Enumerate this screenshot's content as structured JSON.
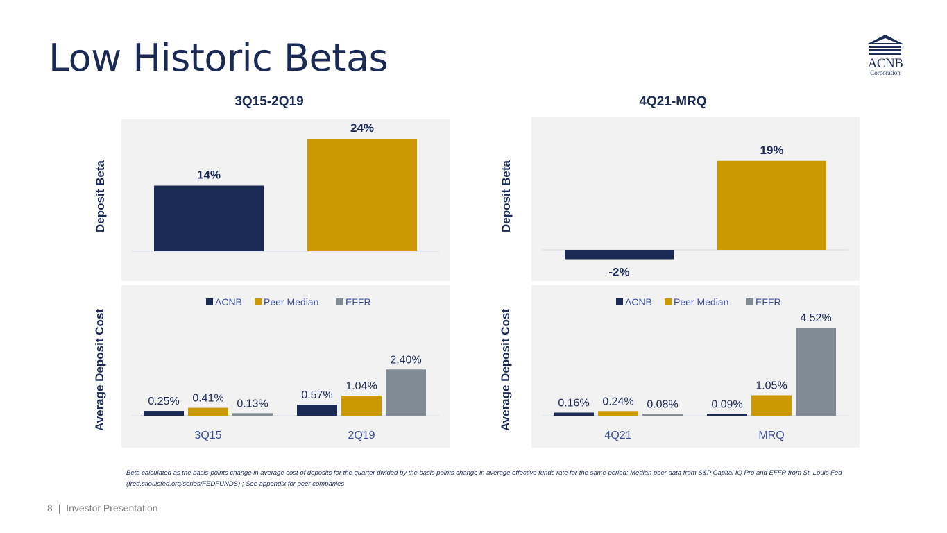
{
  "page": {
    "title": "Low Historic Betas",
    "footnote": "Beta calculated as the basis-points change in average cost of deposits for the quarter divided by the basis points change in average effective funds rate for the same period; Median peer data from S&P Capital IQ Pro and EFFR from St. Louis Fed (fred.stlouisfed.org/series/FEDFUNDS) ; See appendix for peer companies",
    "page_number": "8",
    "footer_separator": "|",
    "footer_text": "Investor Presentation"
  },
  "logo": {
    "name": "ACNB",
    "sub": "Corporation"
  },
  "colors": {
    "navy": "#1b2a55",
    "gold": "#cc9900",
    "gray": "#808b94",
    "panel": "#f2f2f2",
    "label": "#3b4f9a"
  },
  "left": {
    "heading": "3Q15-2Q19",
    "beta_axis_label": "Deposit Beta",
    "cost_axis_label": "Average Deposit Cost"
  },
  "right": {
    "heading": "4Q21-MRQ",
    "beta_axis_label": "Deposit Beta",
    "cost_axis_label": "Average Deposit Cost"
  },
  "chart_data": [
    {
      "id": "beta-left",
      "type": "bar",
      "title": "3Q15-2Q19",
      "ylabel": "Deposit Beta",
      "categories": [
        "ACNB",
        "Peer Median"
      ],
      "values": [
        14,
        24
      ],
      "labels": [
        "14%",
        "24%"
      ],
      "colors": [
        "#1b2a55",
        "#cc9900"
      ],
      "ylim": [
        0,
        25
      ]
    },
    {
      "id": "beta-right",
      "type": "bar",
      "title": "4Q21-MRQ",
      "ylabel": "Deposit Beta",
      "categories": [
        "ACNB",
        "Peer Median"
      ],
      "values": [
        -2,
        19
      ],
      "labels": [
        "-2%",
        "19%"
      ],
      "colors": [
        "#1b2a55",
        "#cc9900"
      ],
      "ylim": [
        -2,
        23
      ]
    },
    {
      "id": "cost-left",
      "type": "bar",
      "ylabel": "Average Deposit Cost",
      "categories": [
        "3Q15",
        "2Q19"
      ],
      "legend": [
        "ACNB",
        "Peer Median",
        "EFFR"
      ],
      "series": [
        {
          "name": "ACNB",
          "color": "#1b2a55",
          "values": [
            0.25,
            0.57
          ],
          "labels": [
            "0.25%",
            "0.57%"
          ]
        },
        {
          "name": "Peer Median",
          "color": "#cc9900",
          "values": [
            0.41,
            1.04
          ],
          "labels": [
            "0.41%",
            "1.04%"
          ]
        },
        {
          "name": "EFFR",
          "color": "#808b94",
          "values": [
            0.13,
            2.4
          ],
          "labels": [
            "0.13%",
            "2.40%"
          ]
        }
      ],
      "ylim": [
        0,
        3.8
      ]
    },
    {
      "id": "cost-right",
      "type": "bar",
      "ylabel": "Average Deposit Cost",
      "categories": [
        "4Q21",
        "MRQ"
      ],
      "legend": [
        "ACNB",
        "Peer Median",
        "EFFR"
      ],
      "series": [
        {
          "name": "ACNB",
          "color": "#1b2a55",
          "values": [
            0.16,
            0.09
          ],
          "labels": [
            "0.16%",
            "0.09%"
          ]
        },
        {
          "name": "Peer Median",
          "color": "#cc9900",
          "values": [
            0.24,
            1.05
          ],
          "labels": [
            "0.24%",
            "1.05%"
          ]
        },
        {
          "name": "EFFR",
          "color": "#808b94",
          "values": [
            0.08,
            4.52
          ],
          "labels": [
            "0.08%",
            "4.52%"
          ]
        }
      ],
      "ylim": [
        0,
        5.5
      ]
    }
  ]
}
